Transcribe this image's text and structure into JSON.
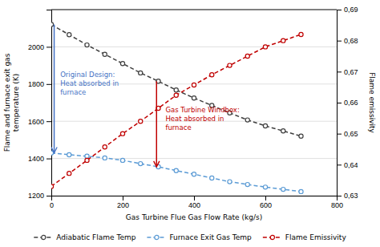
{
  "chart_data": {
    "type": "line",
    "xlabel": "Gas Turbine Flue Gas Flow Rate (kg/s)",
    "ylabel": "Flame and furnace exit gas\ntemperature (K)",
    "y2label": "Flame emissivity",
    "x": [
      0,
      50,
      100,
      150,
      200,
      250,
      300,
      350,
      400,
      450,
      500,
      550,
      600,
      650,
      700
    ],
    "series": [
      {
        "name": "Adiabatic Flame Temp",
        "color": "#404040",
        "marker": "circle",
        "line_style": "dashed",
        "values": [
          2120,
          2065,
          2010,
          1960,
          1910,
          1860,
          1815,
          1768,
          1725,
          1685,
          1645,
          1607,
          1575,
          1548,
          1520
        ]
      },
      {
        "name": "Furnace Exit Gas Temp",
        "color": "#5b9bd5",
        "marker": "circle",
        "line_style": "dashed",
        "values": [
          1430,
          1420,
          1412,
          1403,
          1390,
          1372,
          1355,
          1335,
          1315,
          1295,
          1275,
          1260,
          1246,
          1234,
          1222
        ]
      },
      {
        "name": "Flame Emissivity",
        "color": "#c00000",
        "marker": "circle",
        "line_style": "dashed",
        "axis": "y2",
        "values": [
          0.633,
          0.6372,
          0.6414,
          0.6457,
          0.65,
          0.654,
          0.6582,
          0.6624,
          0.6657,
          0.669,
          0.672,
          0.675,
          0.678,
          0.68,
          0.682
        ]
      }
    ],
    "xlim": [
      0,
      800
    ],
    "xticks": [
      0,
      200,
      400,
      600,
      800
    ],
    "ylim": [
      1200,
      2200
    ],
    "yticks": [
      1200,
      1400,
      1600,
      1800,
      2000
    ],
    "y2lim": [
      0.63,
      0.69
    ],
    "y2ticks": [
      {
        "value": 0.63,
        "label": "0,63"
      },
      {
        "value": 0.64,
        "label": "0,64"
      },
      {
        "value": 0.65,
        "label": "0,65"
      },
      {
        "value": 0.66,
        "label": "0,66"
      },
      {
        "value": 0.67,
        "label": "0,67"
      },
      {
        "value": 0.68,
        "label": "0,68"
      },
      {
        "value": 0.69,
        "label": "0,69"
      }
    ],
    "grid": true,
    "legend": "bottom",
    "annotations": [
      {
        "text": "Original Design:\nHeat absorbed in\nfurnace",
        "x": 25,
        "y": 1870,
        "color": "#4472c4",
        "arrow_x": 8,
        "arrow_from": 2120,
        "arrow_to": 1430
      },
      {
        "text": "Gas Turbine Windbox:\nHeat absorbed in\nfurnace",
        "x": 320,
        "y": 1680,
        "color": "#c00000",
        "arrow_x": 295,
        "arrow_from": 1815,
        "arrow_to": 1355
      }
    ]
  }
}
